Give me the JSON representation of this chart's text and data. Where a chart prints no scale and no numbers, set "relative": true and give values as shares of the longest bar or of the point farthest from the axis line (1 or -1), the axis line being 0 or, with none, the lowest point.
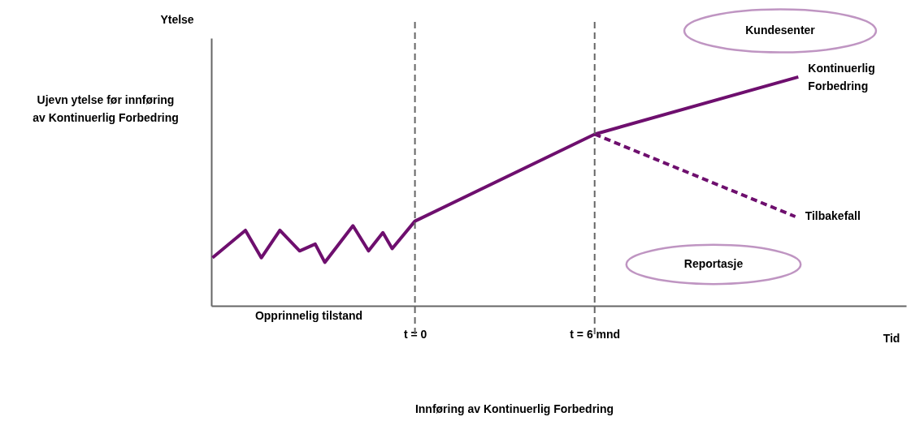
{
  "chart_data": {
    "type": "line",
    "relative": true,
    "xlabel": "Tid",
    "ylabel": "Ytelse",
    "xlim": [
      -6.8,
      16.4
    ],
    "xticks": [
      {
        "value": 0,
        "label": "t = 0"
      },
      {
        "value": 6,
        "label": "t = 6 mnd"
      }
    ],
    "grid": false,
    "marker": "none",
    "line_style": "solid",
    "series": [
      {
        "name": "Kontinuerlig Forbedring",
        "color": "#6e0f6e",
        "x": [
          -6.76,
          -5.66,
          -5.13,
          -4.51,
          -3.85,
          -3.33,
          -3.01,
          -2.07,
          -1.55,
          -1.07,
          -0.76,
          0,
          6,
          12.8
        ],
        "values": [
          0.21,
          0.33,
          0.21,
          0.33,
          0.24,
          0.27,
          0.19,
          0.35,
          0.24,
          0.32,
          0.25,
          0.37,
          0.75,
          1.0
        ]
      },
      {
        "name": "Tilbakefall",
        "color": "#6e0f6e",
        "line_style": "dashed",
        "x": [
          6,
          12.7
        ],
        "values": [
          0.75,
          0.39
        ]
      }
    ],
    "ref_lines": [
      {
        "axis": "x",
        "value": 0,
        "color": "#666666",
        "line_style": "dashed"
      },
      {
        "axis": "x",
        "value": 6,
        "color": "#666666",
        "line_style": "dashed"
      }
    ],
    "annotations": [
      "Ujevn ytelse før innføring av Kontinuerlig Forbedring",
      "Kundesenter",
      "Reportasje",
      "Opprinnelig tilstand",
      "Innføring av Kontinuerlig Forbedring"
    ]
  }
}
